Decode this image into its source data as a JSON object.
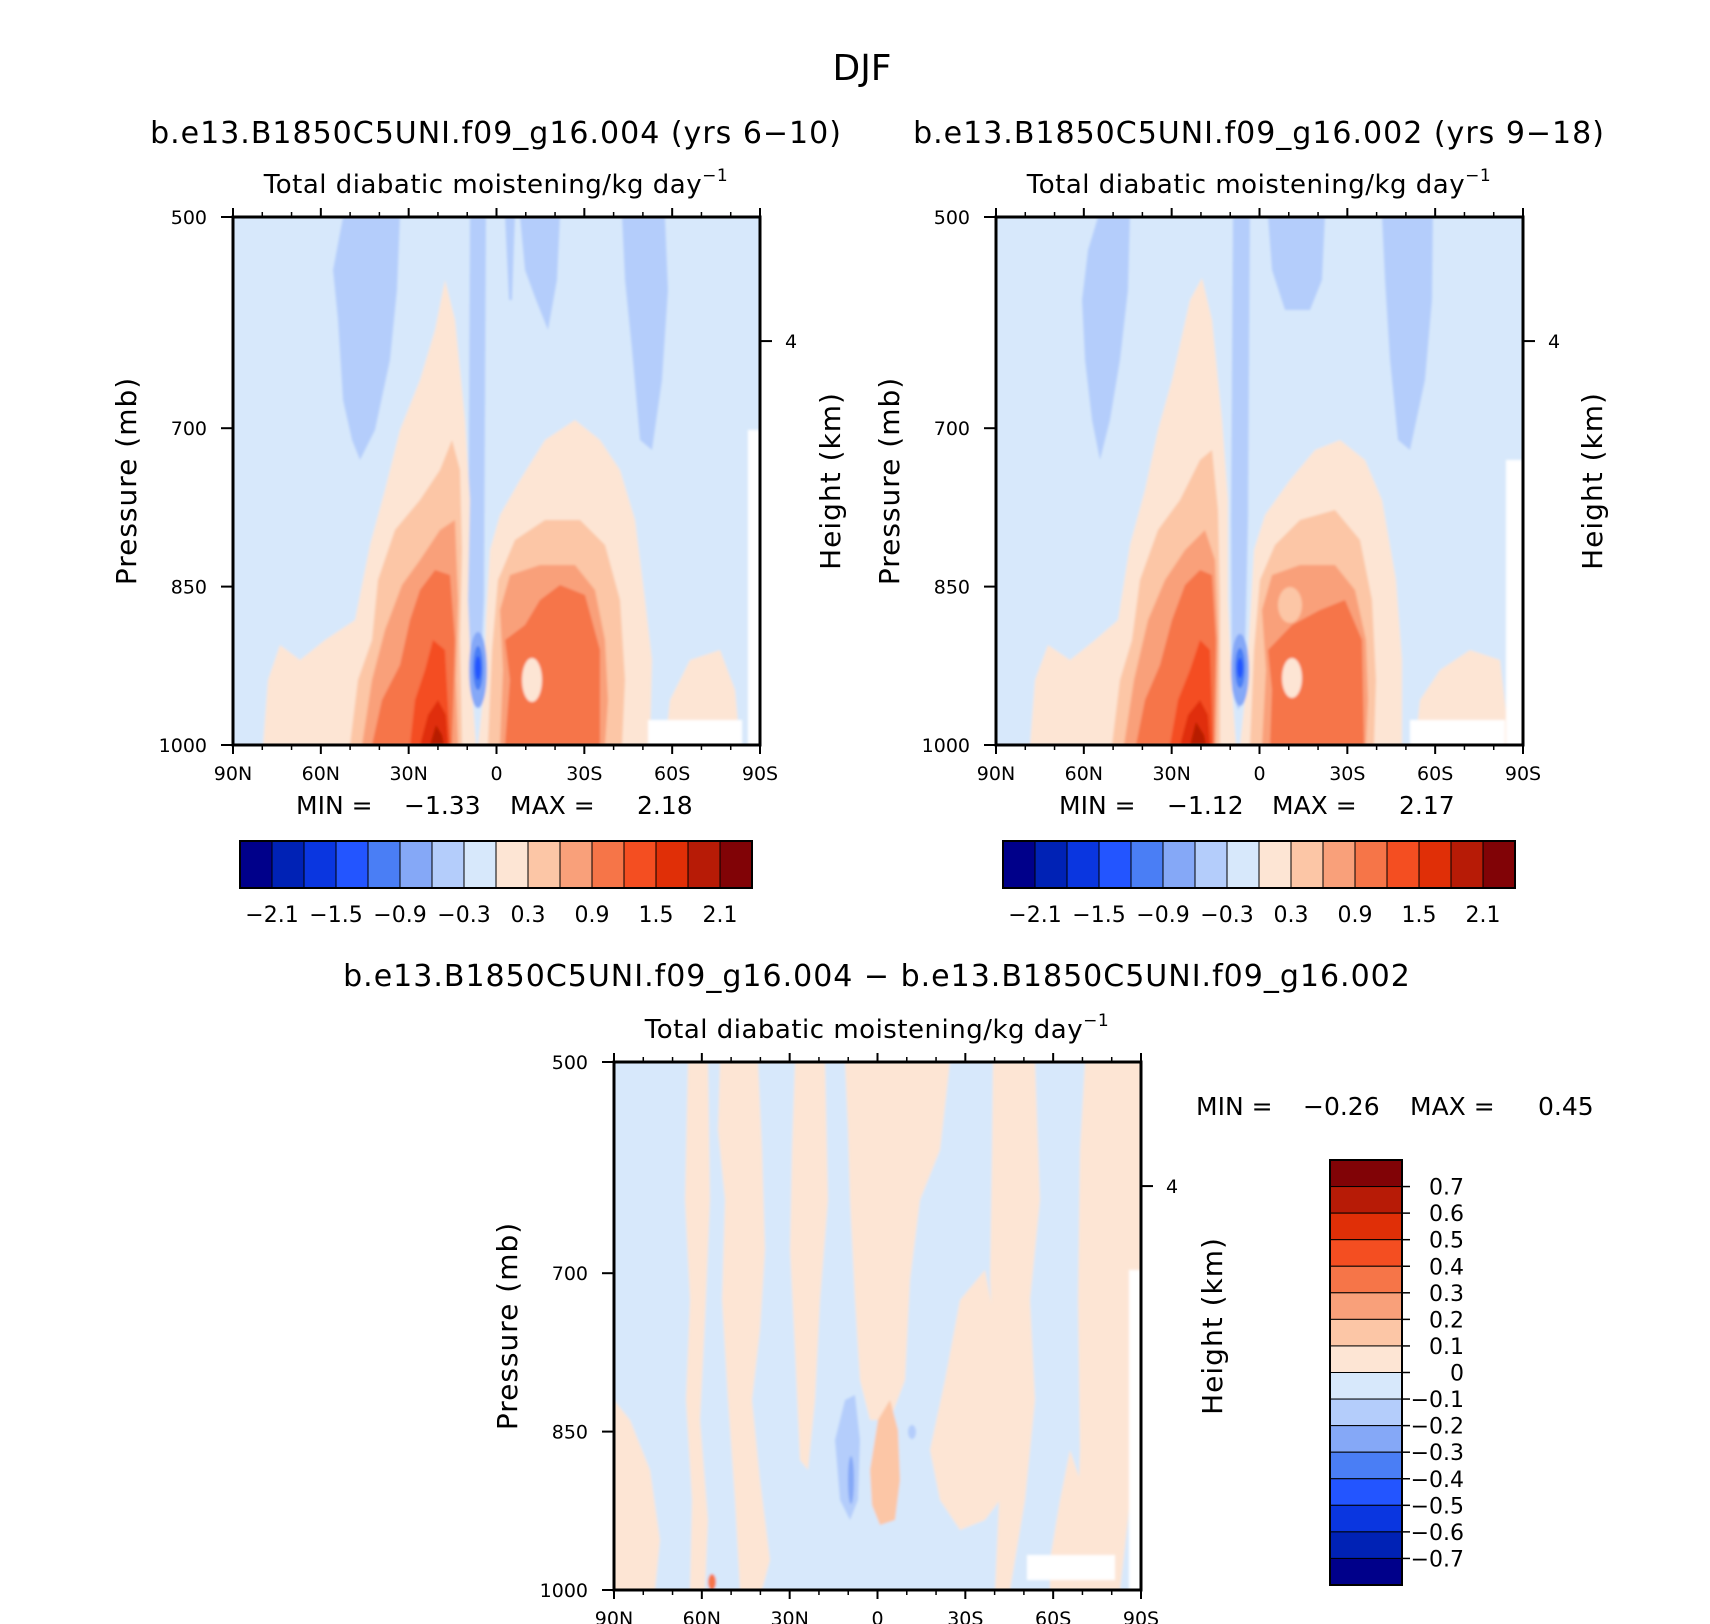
{
  "page": {
    "title": "DJF"
  },
  "chart_data": [
    {
      "type": "heatmap",
      "title": "b.e13.B1850C5UNI.f09_g16.004 (yrs 6−10)",
      "subtitle": "Total diabatic moistening/kg day",
      "subtitle_sup": "−1",
      "xlabel": "",
      "ylabel": "Pressure (mb)",
      "ylabel_right": "Height (km)",
      "x_ticks": [
        "90N",
        "60N",
        "30N",
        "0",
        "30S",
        "60S",
        "90S"
      ],
      "y_ticks": [
        "500",
        "700",
        "850",
        "1000"
      ],
      "y_right_ticks": [
        "4"
      ],
      "ylim": [
        1000,
        500
      ],
      "min_label": "MIN =",
      "min_value": "−1.33",
      "max_label": "MAX =",
      "max_value": "2.18",
      "colorbar": {
        "levels": [
          "−2.1",
          "−1.5",
          "−0.9",
          "−0.3",
          "0.3",
          "0.9",
          "1.5",
          "2.1"
        ],
        "colors": [
          "#00008a",
          "#0022b5",
          "#0a36e0",
          "#2355ff",
          "#4a7ef5",
          "#85a8f7",
          "#b4cdfb",
          "#d7e8fb",
          "#fde5d4",
          "#fcc6a6",
          "#f9a07a",
          "#f67548",
          "#f44e21",
          "#e02f07",
          "#b71b06",
          "#810306"
        ]
      },
      "regions": [
        {
          "label": "Equatorial min (~5N, ~900 mb)",
          "value": -1.33
        },
        {
          "label": "Max (~20N, ~1000 mb)",
          "value": 2.18
        }
      ]
    },
    {
      "type": "heatmap",
      "title": "b.e13.B1850C5UNI.f09_g16.002 (yrs 9−18)",
      "subtitle": "Total diabatic moistening/kg day",
      "subtitle_sup": "−1",
      "xlabel": "",
      "ylabel": "Pressure (mb)",
      "ylabel_right": "Height (km)",
      "x_ticks": [
        "90N",
        "60N",
        "30N",
        "0",
        "30S",
        "60S",
        "90S"
      ],
      "y_ticks": [
        "500",
        "700",
        "850",
        "1000"
      ],
      "y_right_ticks": [
        "4"
      ],
      "ylim": [
        1000,
        500
      ],
      "min_label": "MIN =",
      "min_value": "−1.12",
      "max_label": "MAX =",
      "max_value": "2.17",
      "colorbar": {
        "levels": [
          "−2.1",
          "−1.5",
          "−0.9",
          "−0.3",
          "0.3",
          "0.9",
          "1.5",
          "2.1"
        ],
        "colors": [
          "#00008a",
          "#0022b5",
          "#0a36e0",
          "#2355ff",
          "#4a7ef5",
          "#85a8f7",
          "#b4cdfb",
          "#d7e8fb",
          "#fde5d4",
          "#fcc6a6",
          "#f9a07a",
          "#f67548",
          "#f44e21",
          "#e02f07",
          "#b71b06",
          "#810306"
        ]
      },
      "regions": [
        {
          "label": "Equatorial min (~5N, ~900 mb)",
          "value": -1.12
        },
        {
          "label": "Max (~20N, ~1000 mb)",
          "value": 2.17
        }
      ]
    },
    {
      "type": "heatmap",
      "title": "b.e13.B1850C5UNI.f09_g16.004 − b.e13.B1850C5UNI.f09_g16.002",
      "subtitle": "Total diabatic moistening/kg day",
      "subtitle_sup": "−1",
      "xlabel": "",
      "ylabel": "Pressure (mb)",
      "ylabel_right": "Height (km)",
      "x_ticks": [
        "90N",
        "60N",
        "30N",
        "0",
        "30S",
        "60S",
        "90S"
      ],
      "y_ticks": [
        "500",
        "700",
        "850",
        "1000"
      ],
      "y_right_ticks": [
        "4"
      ],
      "ylim": [
        1000,
        500
      ],
      "min_label": "MIN =",
      "min_value": "−0.26",
      "max_label": "MAX =",
      "max_value": "0.45",
      "colorbar": {
        "levels": [
          "0.7",
          "0.6",
          "0.5",
          "0.4",
          "0.3",
          "0.2",
          "0.1",
          "0",
          "−0.1",
          "−0.2",
          "−0.3",
          "−0.4",
          "−0.5",
          "−0.6",
          "−0.7"
        ],
        "colors": [
          "#810306",
          "#b71b06",
          "#e02f07",
          "#f44e21",
          "#f67548",
          "#f9a07a",
          "#fcc6a6",
          "#fde5d4",
          "#d7e8fb",
          "#b4cdfb",
          "#85a8f7",
          "#4a7ef5",
          "#2355ff",
          "#0a36e0",
          "#0022b5",
          "#00008a"
        ]
      }
    }
  ]
}
